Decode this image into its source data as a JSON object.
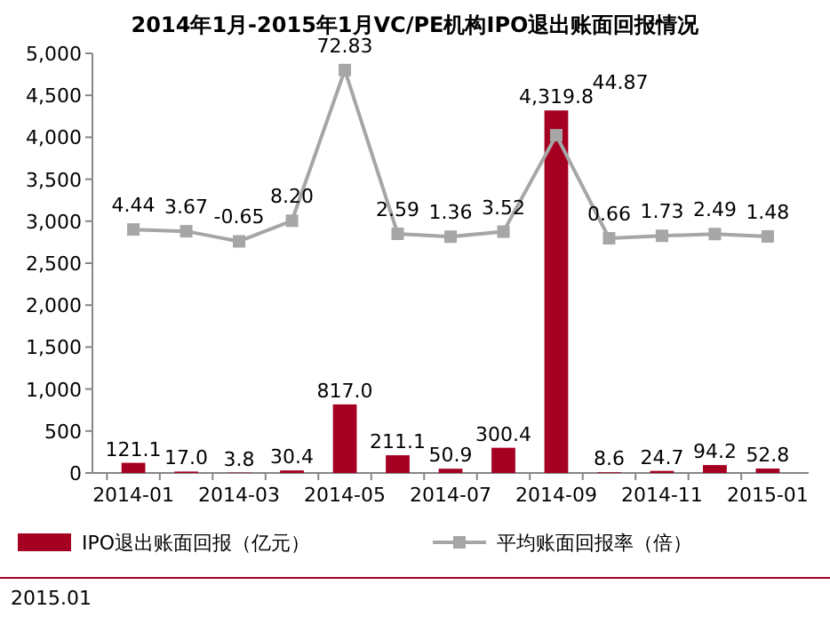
{
  "chart_data": {
    "type": "bar",
    "title": "2014年1月-2015年1月VC/PE机构IPO退出账面回报情况",
    "categories": [
      "2014-01",
      null,
      "2014-03",
      null,
      "2014-05",
      null,
      "2014-07",
      null,
      "2014-09",
      null,
      "2014-11",
      null,
      "2015-01"
    ],
    "series": [
      {
        "name": "IPO退出账面回报（亿元）",
        "color": "#a50021",
        "values": [
          121.1,
          17.0,
          3.8,
          30.4,
          817.0,
          211.1,
          50.9,
          300.4,
          4319.8,
          8.6,
          24.7,
          94.2,
          52.8
        ],
        "value_labels": [
          "121.1",
          "17.0",
          "3.8",
          "30.4",
          "817.0",
          "211.1",
          "50.9",
          "300.4",
          "4,319.8",
          "8.6",
          "24.7",
          "94.2",
          "52.8"
        ]
      },
      {
        "name": "平均账面回报率（倍）",
        "type": "line",
        "axis": "y2",
        "color": "#a6a6a6",
        "marker": "square",
        "values": [
          4.44,
          3.67,
          -0.65,
          8.2,
          72.83,
          2.59,
          1.36,
          3.52,
          44.87,
          0.66,
          1.73,
          2.49,
          1.48
        ],
        "value_labels": [
          "4.44",
          "3.67",
          "-0.65",
          "8.20",
          "72.83",
          "2.59",
          "1.36",
          "3.52",
          "44.87",
          "0.66",
          "1.73",
          "2.49",
          "1.48"
        ]
      }
    ],
    "ylim": [
      0,
      5000
    ],
    "yticks": [
      0,
      {
        "value": 500,
        "label": "500"
      },
      {
        "value": 1000,
        "label": "1,000"
      },
      {
        "value": 1500,
        "label": "1,500"
      },
      {
        "value": 2000,
        "label": "2,000"
      },
      {
        "value": 2500,
        "label": "2,500"
      },
      {
        "value": 3000,
        "label": "3,000"
      },
      {
        "value": 3500,
        "label": "3,500"
      },
      {
        "value": 4000,
        "label": "4,000"
      },
      {
        "value": 4500,
        "label": "4,500"
      },
      {
        "value": 5000,
        "label": "5,000"
      }
    ],
    "y2lim": [
      -100,
      80
    ],
    "legend": "bottom",
    "grid": false,
    "annotations": [
      "2015.01"
    ]
  }
}
